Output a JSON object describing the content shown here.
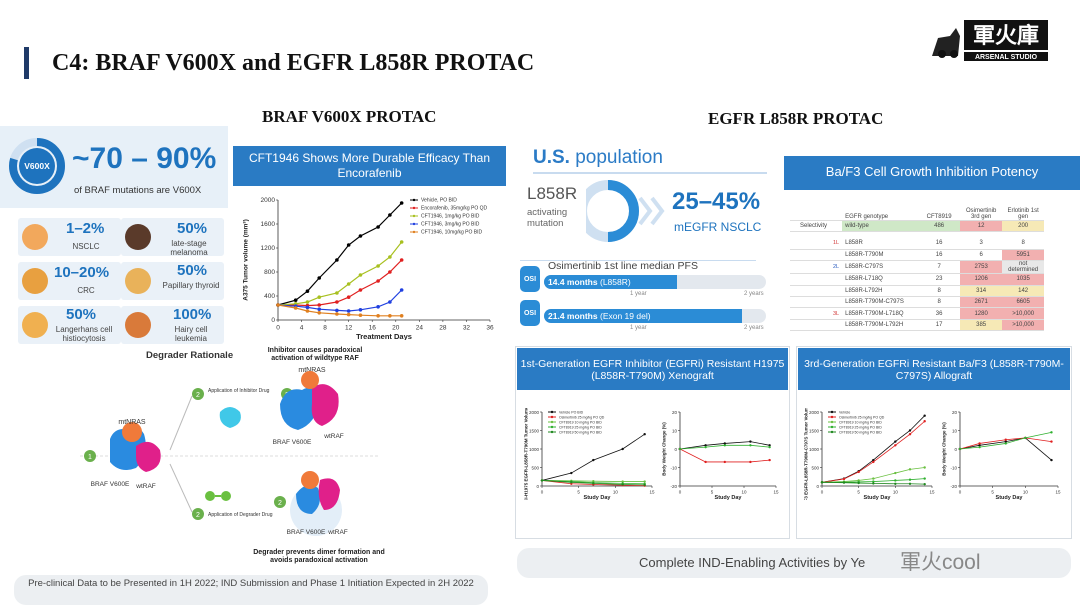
{
  "slide": {
    "title": "C4: BRAF V600X and EGFR L858R PROTAC",
    "logo_text": "軍火庫",
    "logo_sub": "ARSENAL STUDIO"
  },
  "braf": {
    "section_title": "BRAF V600X PROTAC",
    "ring_label": "V600X",
    "pct_range": "~70 – 90%",
    "pct_sub": "of BRAF mutations are V600X",
    "indications": [
      {
        "pct": "1–2%",
        "label": "NSCLC",
        "icon": "lungs-icon"
      },
      {
        "pct": "50%",
        "label": "late-stage melanoma",
        "icon": "melanoma-icon"
      },
      {
        "pct": "10–20%",
        "label": "CRC",
        "icon": "colon-icon"
      },
      {
        "pct": "50%",
        "label": "Papillary thyroid",
        "icon": "thyroid-icon"
      },
      {
        "pct": "50%",
        "label": "Langerhans cell histiocytosis",
        "icon": "histiocytosis-icon"
      },
      {
        "pct": "100%",
        "label": "Hairy cell leukemia",
        "icon": "leukemia-icon"
      }
    ],
    "chart_banner": "CFT1946 Shows More Durable Efficacy Than Encorafenib",
    "degrader_title": "Degrader Rationale",
    "inhibitor_caption": "Inhibitor causes paradoxical activation of wildtype RAF",
    "degrader_caption": "Degrader prevents dimer formation and avoids paradoxical activation",
    "app_inhibitor": "Application of Inhibitor Drug",
    "app_degrader": "Application of Degrader Drug",
    "labels": {
      "mtnras": "mtNRAS",
      "braf": "BRAF V600E",
      "wtraf": "wtRAF",
      "step1": "1",
      "step2": "2"
    },
    "bottom_note": "Pre-clinical Data to be Presented in 1H 2022; IND Submission and Phase 1 Initiation Expected in 2H 2022"
  },
  "egfr": {
    "section_title": "EGFR L858R PROTAC",
    "us_title_a": "U.S.",
    "us_title_b": " population",
    "l858r": "L858R",
    "l858r_sub": "activating mutation",
    "pct_range": "25–45%",
    "pct_sub": "mEGFR NSCLC",
    "pfs_title": "Osimertinib 1st line median PFS",
    "osi": "OSI",
    "pfs_rows": [
      {
        "months": "14.4 months",
        "detail": "(L858R)",
        "value": 14.4
      },
      {
        "months": "21.4 months",
        "detail": "(Exon 19 del)",
        "value": 21.4
      }
    ],
    "year1": "1 year",
    "year2": "2 years",
    "baf3_banner": "Ba/F3 Cell Growth Inhibition Potency",
    "table": {
      "headers": [
        "EGFR genotype",
        "CFT8919",
        "Osimertinib 3rd gen",
        "Erlotinib 1st gen"
      ],
      "selectivity_label": "Selectivity",
      "wild": {
        "geno": "wild-type",
        "v": [
          "486",
          "12",
          "200"
        ]
      },
      "gen_labels": {
        "g1": "1L",
        "g2": "2L",
        "g3": "3L"
      },
      "rows": [
        {
          "geno": "L858R",
          "v": [
            "16",
            "3",
            "8"
          ]
        },
        {
          "geno": "L858R-T790M",
          "v": [
            "16",
            "6",
            "5951"
          ]
        },
        {
          "geno": "L858R-C797S",
          "v": [
            "7",
            "2753",
            "not determined"
          ]
        },
        {
          "geno": "L858R-L718Q",
          "v": [
            "23",
            "1206",
            "1035"
          ]
        },
        {
          "geno": "L858R-L792H",
          "v": [
            "8",
            "314",
            "142"
          ]
        },
        {
          "geno": "L858R-T790M-C797S",
          "v": [
            "8",
            "2671",
            "6605"
          ]
        },
        {
          "geno": "L858R-T790M-L718Q",
          "v": [
            "36",
            "1280",
            ">10,000"
          ]
        },
        {
          "geno": "L858R-T790M-L792H",
          "v": [
            "17",
            "385",
            ">10,000"
          ]
        }
      ]
    },
    "card1_banner": "1st-Generation EGFR Inhibitor (EGFRi) Resistant H1975 (L858R-T790M) Xenograft",
    "card2_banner": "3rd-Generation EGFRi Resistant Ba/F3 (L858R-T790M-C797S) Allograft",
    "bottom_bar": "Complete IND-Enabling Activities by Ye"
  },
  "watermark": "軍火cool",
  "colors": {
    "accent": "#2a7bc4",
    "title_bar": "#1f3a68",
    "vehicle": "#000000",
    "encorafenib": "#e02020",
    "cft1": "#a8c020",
    "cft3": "#2040e0",
    "cft10": "#e08020"
  },
  "chart_data": [
    {
      "type": "line",
      "ylabel": "A375 Tumor volume (mm³)",
      "xlabel": "Treatment Days",
      "x": [
        0,
        2,
        4,
        6,
        8,
        10,
        12,
        14,
        16,
        18,
        20,
        22,
        24,
        26,
        28,
        30,
        32,
        34,
        36
      ],
      "xlim": [
        0,
        36
      ],
      "ylim": [
        0,
        2000
      ],
      "yticks": [
        0,
        400,
        800,
        1200,
        1600,
        2000
      ],
      "series": [
        {
          "name": "Vehicle, PO BID",
          "x": [
            0,
            3,
            5,
            7,
            10,
            12,
            14,
            17,
            19,
            21
          ],
          "values": [
            250,
            330,
            480,
            700,
            1000,
            1250,
            1400,
            1550,
            1750,
            1950
          ]
        },
        {
          "name": "Encorafenib, 35mg/kg PO QD",
          "x": [
            0,
            3,
            5,
            7,
            10,
            12,
            14,
            17,
            19,
            21
          ],
          "values": [
            250,
            250,
            240,
            250,
            300,
            380,
            500,
            650,
            800,
            1000
          ]
        },
        {
          "name": "CFT1946, 1mg/kg PO BID",
          "x": [
            0,
            3,
            5,
            7,
            10,
            12,
            14,
            17,
            19,
            21
          ],
          "values": [
            250,
            270,
            300,
            380,
            450,
            600,
            750,
            900,
            1050,
            1300
          ]
        },
        {
          "name": "CFT1946, 3mg/kg PO BID",
          "x": [
            0,
            3,
            5,
            7,
            10,
            12,
            14,
            17,
            19,
            21
          ],
          "values": [
            250,
            230,
            210,
            180,
            160,
            150,
            170,
            220,
            300,
            500
          ]
        },
        {
          "name": "CFT1946, 10mg/kg PO BID",
          "x": [
            0,
            3,
            5,
            7,
            10,
            12,
            14,
            17,
            19,
            21
          ],
          "values": [
            250,
            200,
            150,
            120,
            100,
            90,
            80,
            70,
            70,
            70
          ]
        }
      ]
    },
    {
      "type": "line",
      "ylabel": "NCI-H1975 EGFR-L858R-T790M Tumor Volume (mm³)",
      "xlabel": "Study Day",
      "x": [
        0,
        5,
        10,
        15
      ],
      "xlim": [
        0,
        15
      ],
      "ylim": [
        0,
        2000
      ],
      "yticks": [
        0,
        500,
        1000,
        1500,
        2000
      ],
      "series": [
        {
          "name": "Vehicle PO BID",
          "x": [
            0,
            4,
            7,
            11,
            14
          ],
          "values": [
            150,
            350,
            700,
            1000,
            1400
          ]
        },
        {
          "name": "Osimertinib 25 mg/kg PO QD",
          "x": [
            0,
            4,
            7,
            11,
            14
          ],
          "values": [
            150,
            60,
            40,
            20,
            10
          ]
        },
        {
          "name": "CFT8919 10 mg/kg PO BID",
          "x": [
            0,
            4,
            7,
            11,
            14
          ],
          "values": [
            150,
            140,
            130,
            120,
            120
          ]
        },
        {
          "name": "CFT8919 25 mg/kg PO BID",
          "x": [
            0,
            4,
            7,
            11,
            14
          ],
          "values": [
            150,
            120,
            90,
            70,
            60
          ]
        },
        {
          "name": "CFT8919 50 mg/kg PO BID",
          "x": [
            0,
            4,
            7,
            11,
            14
          ],
          "values": [
            150,
            100,
            70,
            40,
            30
          ]
        }
      ]
    },
    {
      "type": "line",
      "ylabel": "Body Weight Change (%)",
      "xlabel": "Study Day",
      "x": [
        0,
        5,
        10,
        15
      ],
      "xlim": [
        0,
        15
      ],
      "ylim": [
        -20,
        20
      ],
      "yticks": [
        -20,
        -10,
        0,
        10,
        20
      ],
      "series": [
        {
          "name": "Vehicle PO BID",
          "x": [
            0,
            4,
            7,
            11,
            14
          ],
          "values": [
            0,
            2,
            3,
            4,
            2
          ]
        },
        {
          "name": "Osimertinib 25 mg/kg PO QD",
          "x": [
            0,
            4,
            7,
            11,
            14
          ],
          "values": [
            0,
            -7,
            -7,
            -7,
            -6
          ]
        },
        {
          "name": "CFT8919 50 mg/kg PO BID",
          "x": [
            0,
            4,
            7,
            11,
            14
          ],
          "values": [
            0,
            1,
            2,
            2,
            1
          ]
        }
      ]
    },
    {
      "type": "line",
      "ylabel": "BaF3 EGFR-L858R-T790M-C797S Tumor Volume (mm³)",
      "xlabel": "Study Day",
      "x": [
        0,
        5,
        10,
        15
      ],
      "xlim": [
        0,
        15
      ],
      "ylim": [
        0,
        2000
      ],
      "yticks": [
        0,
        500,
        1000,
        1500,
        2000
      ],
      "series": [
        {
          "name": "Vehicle",
          "x": [
            0,
            3,
            5,
            7,
            10,
            12,
            14
          ],
          "values": [
            100,
            200,
            400,
            700,
            1200,
            1500,
            1900
          ]
        },
        {
          "name": "Osimertinib 25 mg/kg PO QD",
          "x": [
            0,
            3,
            5,
            7,
            10,
            12,
            14
          ],
          "values": [
            100,
            190,
            380,
            650,
            1100,
            1400,
            1750
          ]
        },
        {
          "name": "CFT8919 10 mg/kg PO BID",
          "x": [
            0,
            3,
            5,
            7,
            10,
            12,
            14
          ],
          "values": [
            100,
            120,
            150,
            200,
            350,
            450,
            500
          ]
        },
        {
          "name": "CFT8919 25 mg/kg PO BID",
          "x": [
            0,
            3,
            5,
            7,
            10,
            12,
            14
          ],
          "values": [
            100,
            100,
            110,
            120,
            150,
            170,
            200
          ]
        },
        {
          "name": "CFT8919 50 mg/kg PO BID",
          "x": [
            0,
            3,
            5,
            7,
            10,
            12,
            14
          ],
          "values": [
            100,
            90,
            80,
            70,
            60,
            60,
            50
          ]
        }
      ]
    },
    {
      "type": "line",
      "ylabel": "Body Weight Change (%)",
      "xlabel": "Study Day",
      "x": [
        0,
        5,
        10,
        15
      ],
      "xlim": [
        0,
        15
      ],
      "ylim": [
        -20,
        20
      ],
      "yticks": [
        -20,
        -10,
        0,
        10,
        20
      ],
      "series": [
        {
          "name": "Vehicle",
          "x": [
            0,
            3,
            7,
            10,
            14
          ],
          "values": [
            0,
            2,
            4,
            6,
            -6
          ]
        },
        {
          "name": "Osimertinib 25 mg/kg PO QD",
          "x": [
            0,
            3,
            7,
            10,
            14
          ],
          "values": [
            0,
            3,
            5,
            6,
            4
          ]
        },
        {
          "name": "CFT8919 50 mg/kg PO BID",
          "x": [
            0,
            3,
            7,
            10,
            14
          ],
          "values": [
            0,
            1,
            3,
            6,
            9
          ]
        }
      ]
    }
  ]
}
